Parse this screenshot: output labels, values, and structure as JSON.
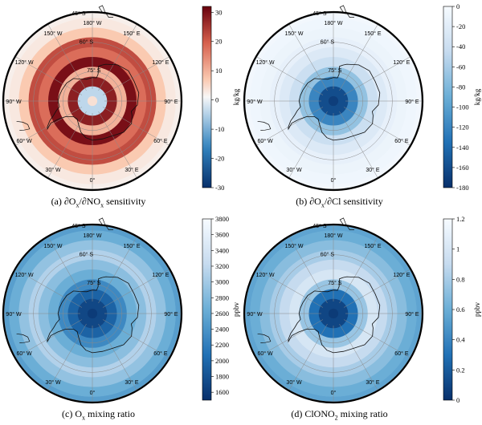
{
  "chart_data": [
    {
      "type": "heatmap",
      "projection": "south-polar-stereographic",
      "caption": {
        "prefix": "(a) ∂O",
        "s1": "x",
        "mid": "/∂NO",
        "s2": "x",
        "suffix": " sensitivity"
      },
      "colorbar": {
        "min": -30,
        "max": 32,
        "ticks": [
          30,
          20,
          10,
          0,
          -10,
          -20,
          -30
        ],
        "label": "kg/kg",
        "cmap": "diverging"
      },
      "lat_bands": [
        {
          "lat": -90,
          "value": 4
        },
        {
          "lat": -85,
          "value": -4
        },
        {
          "lat": -80,
          "value": 28
        },
        {
          "lat": -75,
          "value": 10
        },
        {
          "lat": -70,
          "value": 30
        },
        {
          "lat": -65,
          "value": 18
        },
        {
          "lat": -60,
          "value": 22
        },
        {
          "lat": -55,
          "value": 7
        },
        {
          "lat": -50,
          "value": 3
        },
        {
          "lat": -45,
          "value": 2
        }
      ],
      "lon_labels": [
        "180° W",
        "150° W",
        "120° W",
        "90° W",
        "60° W",
        "30° W",
        "0°",
        "30° E",
        "60° E",
        "90° E",
        "120° E",
        "150° E"
      ],
      "lat_labels": [
        "75° S",
        "60° S",
        "45° S"
      ]
    },
    {
      "type": "heatmap",
      "projection": "south-polar-stereographic",
      "caption": {
        "prefix": "(b) ∂O",
        "s1": "x",
        "mid": "/∂Cl",
        "s2": "",
        "suffix": " sensitivity"
      },
      "colorbar": {
        "min": -180,
        "max": 0,
        "ticks": [
          0,
          -20,
          -40,
          -60,
          -80,
          -100,
          -120,
          -140,
          -160,
          -180
        ],
        "label": "kg/kg",
        "cmap": "blues_r"
      },
      "lat_bands": [
        {
          "lat": -90,
          "value": -170
        },
        {
          "lat": -85,
          "value": -160
        },
        {
          "lat": -80,
          "value": -120
        },
        {
          "lat": -75,
          "value": -70
        },
        {
          "lat": -70,
          "value": -40
        },
        {
          "lat": -65,
          "value": -25
        },
        {
          "lat": -60,
          "value": -15
        },
        {
          "lat": -55,
          "value": -10
        },
        {
          "lat": -50,
          "value": -7
        },
        {
          "lat": -45,
          "value": -5
        }
      ],
      "lon_labels": [
        "180° W",
        "150° W",
        "120° W",
        "90° W",
        "60° W",
        "30° W",
        "0°",
        "30° E",
        "60° E",
        "90° E",
        "120° E",
        "150° E"
      ],
      "lat_labels": [
        "75° S",
        "60° S",
        "45° S"
      ]
    },
    {
      "type": "heatmap",
      "projection": "south-polar-stereographic",
      "caption": {
        "prefix": "(c) O",
        "s1": "x",
        "mid": " mixing ratio",
        "s2": "",
        "suffix": ""
      },
      "colorbar": {
        "min": 1500,
        "max": 3800,
        "ticks": [
          3800,
          3600,
          3400,
          3200,
          3000,
          2800,
          2600,
          2400,
          2200,
          2000,
          1800,
          1600
        ],
        "label": "ppbv",
        "cmap": "blues_r"
      },
      "lat_bands": [
        {
          "lat": -90,
          "value": 1600
        },
        {
          "lat": -85,
          "value": 1700
        },
        {
          "lat": -80,
          "value": 1950
        },
        {
          "lat": -75,
          "value": 2300
        },
        {
          "lat": -70,
          "value": 2650
        },
        {
          "lat": -65,
          "value": 2850
        },
        {
          "lat": -60,
          "value": 3100
        },
        {
          "lat": -55,
          "value": 2900
        },
        {
          "lat": -50,
          "value": 2650
        },
        {
          "lat": -45,
          "value": 2500
        }
      ],
      "lon_labels": [
        "180° W",
        "150° W",
        "120° W",
        "90° W",
        "60° W",
        "30° W",
        "0°",
        "30° E",
        "60° E",
        "90° E",
        "120° E",
        "150° E"
      ],
      "lat_labels": [
        "75° S",
        "60° S",
        "45° S"
      ]
    },
    {
      "type": "heatmap",
      "projection": "south-polar-stereographic",
      "caption": {
        "prefix": "(d) ClONO",
        "s1": "2",
        "mid": " mixing ratio",
        "s2": "",
        "suffix": ""
      },
      "colorbar": {
        "min": 0,
        "max": 1.2,
        "ticks": [
          1.2,
          1,
          0.8,
          0.6,
          0.4,
          0.2,
          0
        ],
        "label": "ppbv",
        "cmap": "blues_r"
      },
      "lat_bands": [
        {
          "lat": -90,
          "value": 0.05
        },
        {
          "lat": -85,
          "value": 0.1
        },
        {
          "lat": -80,
          "value": 0.3
        },
        {
          "lat": -75,
          "value": 0.75
        },
        {
          "lat": -70,
          "value": 1.0
        },
        {
          "lat": -65,
          "value": 0.9
        },
        {
          "lat": -60,
          "value": 0.8
        },
        {
          "lat": -55,
          "value": 0.7
        },
        {
          "lat": -50,
          "value": 0.6
        },
        {
          "lat": -45,
          "value": 0.55
        }
      ],
      "lon_labels": [
        "180° W",
        "150° W",
        "120° W",
        "90° W",
        "60° W",
        "30° W",
        "0°",
        "30° E",
        "60° E",
        "90° E",
        "120° E",
        "150° E"
      ],
      "lat_labels": [
        "75° S",
        "60° S",
        "45° S"
      ]
    }
  ]
}
